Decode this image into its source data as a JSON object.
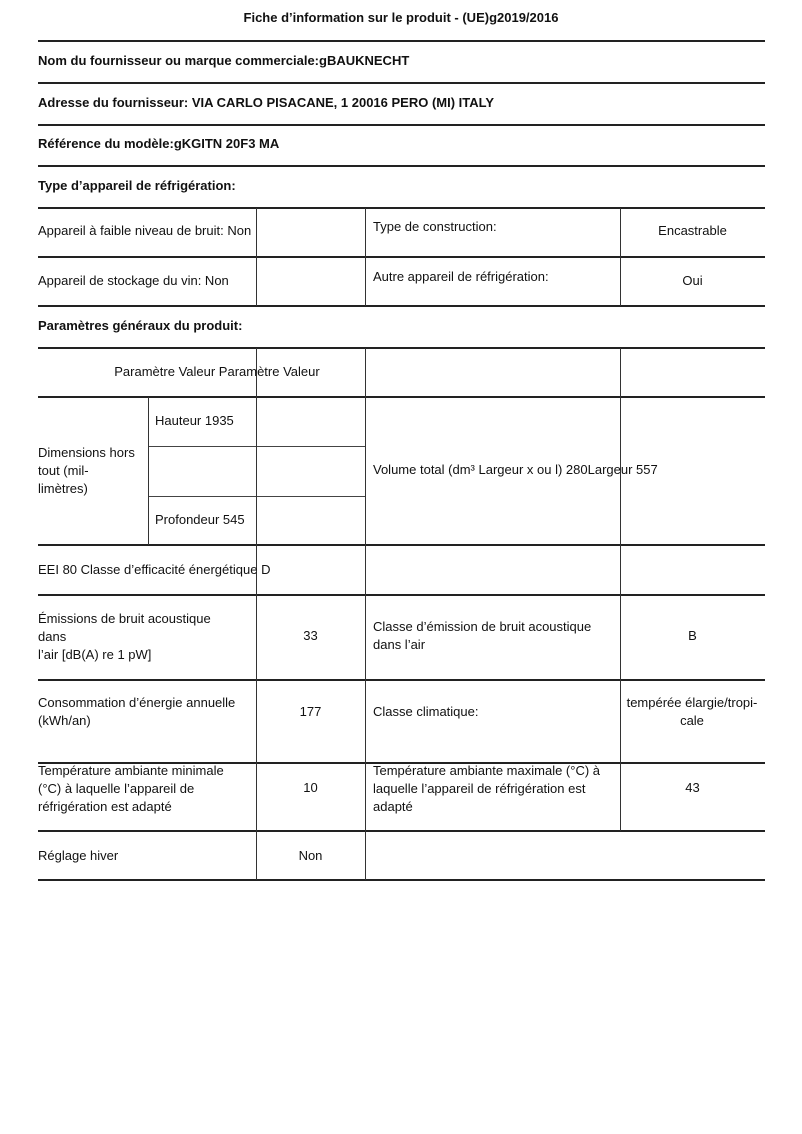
{
  "title": "Fiche d’information sur le produit - (UE)g2019/2016",
  "supplier_name": "Nom du fournisseur ou marque commerciale:gBAUKNECHT",
  "supplier_address": "Adresse du fournisseur: VIA CARLO PISACANE, 1 20016 PERO (MI) ITALY",
  "model_reference": "Référence du modèle:gKGITN 20F3 MA",
  "appliance_type_heading": "Type d’appareil de réfrigération:",
  "appliance_type": {
    "low_noise": "Appareil à faible niveau de bruit: Non",
    "construction_label": "Type de construction:",
    "construction_value": "Encastrable",
    "wine_storage": "Appareil de stockage du vin: Non",
    "other_label": "Autre appareil de réfrigération:",
    "other_value": "Oui"
  },
  "general_params_heading": "Paramètres généraux du produit:",
  "params": {
    "header": "Paramètre Valeur Paramètre Valeur",
    "dimensions_label": [
      "Dimensions hors",
      "tout (mil-",
      "limètres)"
    ],
    "height": "Hauteur 1935",
    "depth": "Profondeur 545",
    "volume_width": "Volume total (dm³ Largeur x ou l) 280Largeur 557",
    "eei": "EEI 80 Classe d’efficacité énergétique D",
    "noise_label": [
      "Émissions de bruit acoustique",
      "dans",
      "l’air [dB(A) re 1 pW]"
    ],
    "noise_value": "33",
    "noise_class_label": [
      "Classe d’émission de bruit acoustique",
      "dans l’air"
    ],
    "noise_class_value": "B",
    "energy_label": [
      "Consommation d’énergie annuelle",
      "(kWh/an)"
    ],
    "energy_value": "177",
    "climate_label": "Classe climatique:",
    "climate_value": [
      "tempérée élargie/tropi-",
      "cale"
    ],
    "temp_min_label": [
      "Température ambiante minimale",
      "(°C) à laquelle l’appareil de",
      "réfrigération est adapté"
    ],
    "temp_min_value": "10",
    "temp_max_label": [
      "Température ambiante maximale (°C) à",
      "laquelle l’appareil de réfrigération est",
      "adapté"
    ],
    "temp_max_value": "43",
    "winter_label": "Réglage hiver",
    "winter_value": "Non"
  }
}
